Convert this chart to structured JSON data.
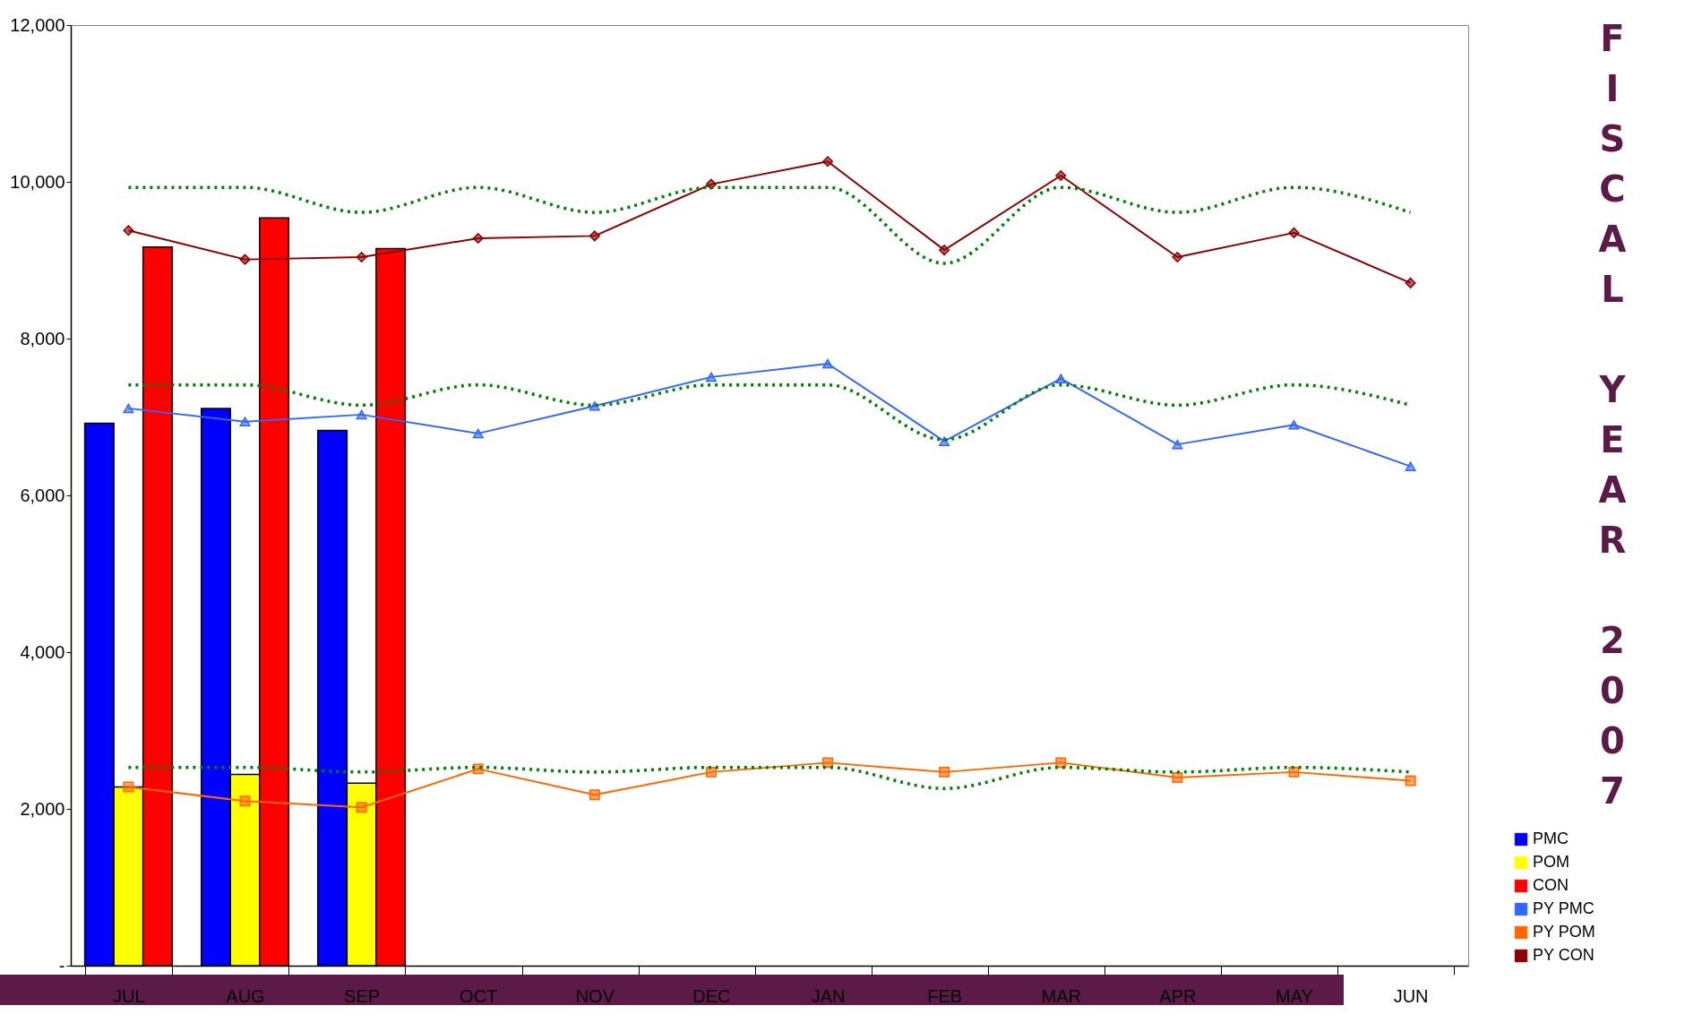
{
  "chart_data": {
    "type": "bar",
    "title": "FISCAL YEAR 2007",
    "categories": [
      "JUL",
      "AUG",
      "SEP",
      "OCT",
      "NOV",
      "DEC",
      "JAN",
      "FEB",
      "MAR",
      "APR",
      "MAY",
      "JUN"
    ],
    "series": [
      {
        "name": "PMC",
        "color": "#0000ff",
        "values": [
          6920,
          7110,
          6830,
          null,
          null,
          null,
          null,
          null,
          null,
          null,
          null,
          null
        ]
      },
      {
        "name": "POM",
        "color": "#ffff00",
        "values": [
          2280,
          2440,
          2330,
          null,
          null,
          null,
          null,
          null,
          null,
          null,
          null,
          null
        ]
      },
      {
        "name": "CON",
        "color": "#ff0000",
        "values": [
          9170,
          9540,
          9150,
          null,
          null,
          null,
          null,
          null,
          null,
          null,
          null,
          null
        ]
      },
      {
        "name": "PY PMC",
        "type": "line",
        "marker": "triangle",
        "color": "#3366ff",
        "values": [
          7110,
          6940,
          7030,
          6790,
          7140,
          7510,
          7680,
          6690,
          7490,
          6650,
          6900,
          6370
        ]
      },
      {
        "name": "PY POM",
        "type": "line",
        "marker": "square",
        "color": "#ff6600",
        "values": [
          2280,
          2100,
          2020,
          2510,
          2180,
          2470,
          2590,
          2470,
          2590,
          2400,
          2470,
          2360
        ]
      },
      {
        "name": "PY CON",
        "type": "line",
        "marker": "diamond",
        "color": "#8b0000",
        "values": [
          9380,
          9010,
          9040,
          9280,
          9310,
          9970,
          10260,
          9130,
          10080,
          9040,
          9350,
          8710
        ]
      },
      {
        "type": "line",
        "marker": "none",
        "line_style": "dotted",
        "color": "#008000",
        "values": [
          9930,
          9930,
          9610,
          9930,
          9610,
          9930,
          9930,
          8960,
          9930,
          9610,
          9930,
          9610
        ]
      },
      {
        "type": "line",
        "marker": "none",
        "line_style": "dotted",
        "color": "#008000",
        "values": [
          7410,
          7410,
          7150,
          7410,
          7150,
          7410,
          7410,
          6710,
          7410,
          7150,
          7410,
          7150
        ]
      },
      {
        "type": "line",
        "marker": "none",
        "line_style": "dotted",
        "color": "#008000",
        "values": [
          2530,
          2530,
          2470,
          2530,
          2470,
          2530,
          2530,
          2260,
          2530,
          2470,
          2530,
          2470
        ]
      }
    ],
    "ylim": [
      0,
      12000
    ],
    "yticks": [
      {
        "value": 0,
        "label": "-"
      },
      {
        "value": 2000,
        "label": "2,000"
      },
      {
        "value": 4000,
        "label": "4,000"
      },
      {
        "value": 6000,
        "label": "6,000"
      },
      {
        "value": 8000,
        "label": "8,000"
      },
      {
        "value": 10000,
        "label": "10,000"
      },
      {
        "value": 12000,
        "label": "12,000"
      }
    ],
    "grid": false,
    "legend": "bottom right"
  }
}
